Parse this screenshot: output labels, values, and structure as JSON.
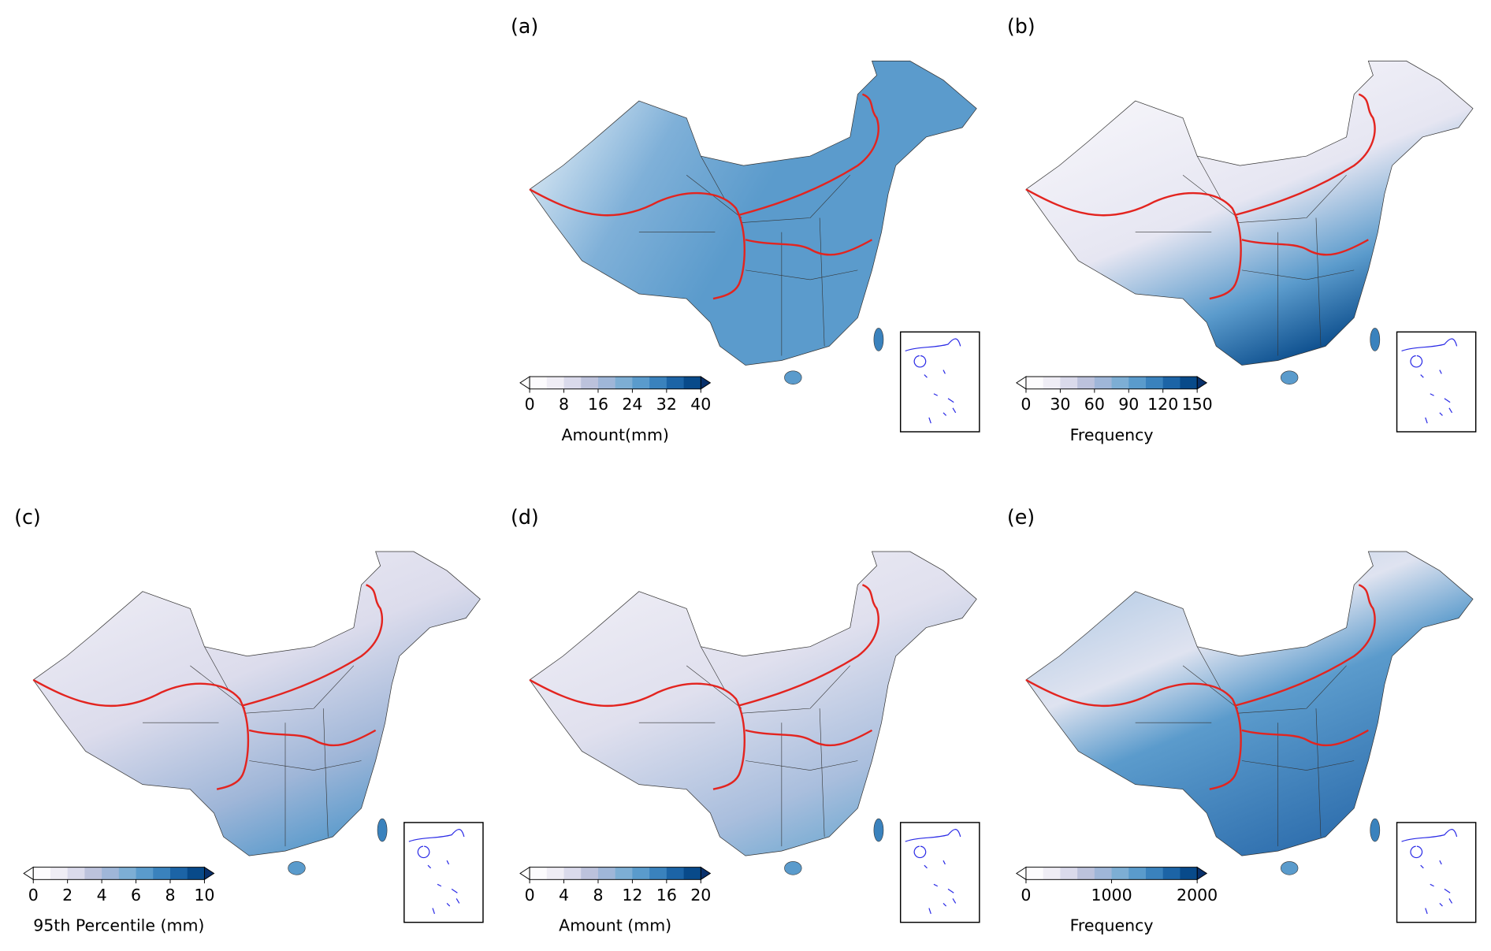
{
  "panels": [
    {
      "label": "(a)",
      "colorbar": {
        "label": "Amount(mm)",
        "lim": [
          0,
          40
        ],
        "ticks": [
          0,
          8,
          16,
          24,
          32,
          40
        ]
      }
    },
    {
      "label": "(b)",
      "colorbar": {
        "label": "Frequency",
        "lim": [
          0,
          150
        ],
        "ticks": [
          0,
          30,
          60,
          90,
          120,
          150
        ]
      }
    },
    {
      "label": "(c)",
      "colorbar": {
        "label": "95th Percentile (mm)",
        "lim": [
          0,
          10
        ],
        "ticks": [
          0,
          2,
          4,
          6,
          8,
          10
        ]
      }
    },
    {
      "label": "(d)",
      "colorbar": {
        "label": "Amount (mm)",
        "lim": [
          0,
          20
        ],
        "ticks": [
          0,
          4,
          8,
          12,
          16,
          20
        ]
      }
    },
    {
      "label": "(e)",
      "colorbar": {
        "label": "Frequency",
        "lim": [
          0,
          2000
        ],
        "ticks": [
          0,
          1000,
          2000
        ]
      }
    }
  ]
}
